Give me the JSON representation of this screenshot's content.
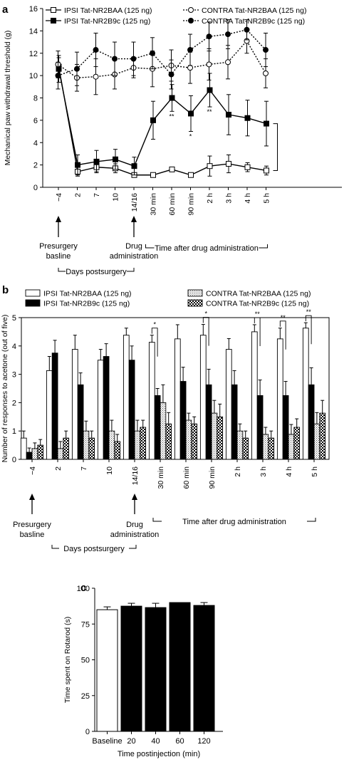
{
  "panels": {
    "a": {
      "letter": "a"
    },
    "b": {
      "letter": "b"
    },
    "c": {
      "letter": "c"
    }
  },
  "common": {
    "x_categories": [
      "−4",
      "2",
      "7",
      "10",
      "14/16",
      "30 min",
      "60 min",
      "90 min",
      "2 h",
      "3 h",
      "4 h",
      "5 h"
    ],
    "presurgery_label": [
      "Presurgery",
      "basline"
    ],
    "drug_label": [
      "Drug",
      "administration"
    ],
    "days_label": "Days postsurgery",
    "time_after_label": "Time after drug administration"
  },
  "chart_data": [
    {
      "panel": "a",
      "type": "line",
      "ylabel": "Mechanical paw withdrawal threshold (g)",
      "xlabel": "",
      "ylim": [
        0,
        16
      ],
      "yticks": [
        0,
        2,
        4,
        6,
        8,
        10,
        12,
        14,
        16
      ],
      "categories": [
        "−4",
        "2",
        "7",
        "10",
        "14/16",
        "30 min",
        "60 min",
        "90 min",
        "2 h",
        "3 h",
        "4 h",
        "5 h"
      ],
      "legend_position": "top",
      "series": [
        {
          "name": "IPSI Tat-NR2BAA (125 ng)",
          "marker": "open-square",
          "line": "solid",
          "values": [
            10.8,
            1.4,
            1.8,
            1.7,
            1.1,
            1.1,
            1.6,
            1.1,
            1.9,
            2.1,
            1.8,
            1.5
          ],
          "errors": [
            0.8,
            0.4,
            0.4,
            0.4,
            0.2,
            0.1,
            0.2,
            0.2,
            0.9,
            0.8,
            0.4,
            0.4
          ]
        },
        {
          "name": "IPSI Tat-NR2B9c (125 ng)",
          "marker": "filled-square",
          "line": "solid",
          "values": [
            10.6,
            2.0,
            2.3,
            2.5,
            1.9,
            6.0,
            8.0,
            6.6,
            8.7,
            6.5,
            6.2,
            5.7
          ],
          "errors": [
            1.2,
            0.9,
            1.0,
            0.9,
            0.8,
            1.7,
            1.2,
            1.6,
            1.5,
            1.8,
            1.6,
            2.0
          ]
        },
        {
          "name": "CONTRA Tat-NR2BAA (125 ng)",
          "marker": "open-circle",
          "line": "dotted",
          "values": [
            11.0,
            9.8,
            9.9,
            10.1,
            10.7,
            10.6,
            10.9,
            10.7,
            11.0,
            11.2,
            13.1,
            10.2
          ],
          "errors": [
            1.2,
            1.2,
            1.6,
            1.3,
            0.9,
            1.6,
            1.4,
            1.4,
            1.4,
            1.5,
            1.1,
            1.3
          ]
        },
        {
          "name": "CONTRA Tat-NR2B9c (125 ng)",
          "marker": "filled-circle",
          "line": "dotted",
          "values": [
            10.0,
            10.6,
            12.3,
            11.5,
            11.5,
            12.0,
            10.1,
            12.3,
            13.5,
            13.7,
            14.1,
            12.3
          ],
          "errors": [
            1.2,
            1.5,
            1.5,
            1.5,
            1.5,
            1.4,
            1.3,
            1.4,
            1.3,
            1.3,
            0.9,
            1.5
          ]
        }
      ],
      "significance": [
        {
          "index": 6,
          "label": "**"
        },
        {
          "index": 7,
          "label": "*"
        },
        {
          "index": 8,
          "label": "**"
        }
      ]
    },
    {
      "panel": "b",
      "type": "bar",
      "ylabel": "Number of responses to acetone (out of five)",
      "xlabel": "",
      "ylim": [
        0,
        5
      ],
      "yticks": [
        0,
        1,
        2,
        3,
        4,
        5
      ],
      "categories": [
        "−4",
        "2",
        "7",
        "10",
        "14/16",
        "30 min",
        "60 min",
        "90 min",
        "2 h",
        "3 h",
        "4 h",
        "5 h"
      ],
      "legend_position": "top",
      "series": [
        {
          "name": "IPSI Tat-NR2BAA (125 ng)",
          "fill": "white",
          "values": [
            0.75,
            3.13,
            3.88,
            3.5,
            4.38,
            4.13,
            4.25,
            4.38,
            3.88,
            4.5,
            4.25,
            4.63
          ],
          "errors": [
            0.25,
            0.5,
            0.5,
            0.38,
            0.25,
            0.25,
            0.5,
            0.38,
            0.38,
            0.25,
            0.38,
            0.19
          ]
        },
        {
          "name": "IPSI Tat-NR2B9c (125 ng)",
          "fill": "black",
          "values": [
            0.25,
            3.75,
            2.63,
            3.63,
            3.5,
            2.25,
            2.75,
            2.63,
            2.63,
            2.25,
            2.25,
            2.63
          ],
          "errors": [
            0.15,
            0.45,
            0.42,
            0.45,
            0.5,
            0.25,
            0.5,
            0.55,
            0.5,
            0.55,
            0.5,
            0.6
          ]
        },
        {
          "name": "CONTRA Tat-NR2BAA (125 ng)",
          "fill": "stipple",
          "values": [
            0.38,
            0.38,
            1.0,
            1.0,
            1.0,
            2.0,
            1.38,
            1.63,
            1.0,
            0.88,
            0.88,
            1.25
          ],
          "errors": [
            0.2,
            0.25,
            0.35,
            0.38,
            0.38,
            0.63,
            0.25,
            0.45,
            0.25,
            0.25,
            0.35,
            0.4
          ]
        },
        {
          "name": "CONTRA Tat-NR2B9c (125 ng)",
          "fill": "checker",
          "values": [
            0.5,
            0.75,
            0.75,
            0.63,
            1.13,
            1.25,
            1.25,
            1.5,
            0.75,
            0.75,
            1.13,
            1.63
          ],
          "errors": [
            0.2,
            0.25,
            0.25,
            0.25,
            0.25,
            0.4,
            0.25,
            0.45,
            0.25,
            0.25,
            0.3,
            0.45
          ]
        }
      ],
      "significance": [
        {
          "index": 5,
          "label": "*"
        },
        {
          "index": 7,
          "label": "*"
        },
        {
          "index": 9,
          "label": "**"
        },
        {
          "index": 10,
          "label": "**"
        },
        {
          "index": 11,
          "label": "**"
        }
      ]
    },
    {
      "panel": "c",
      "type": "bar",
      "ylabel": "Time spent on Rotarod (s)",
      "xlabel": "Time postinjection (min)",
      "ylim": [
        0,
        100
      ],
      "yticks": [
        0,
        25,
        50,
        75,
        100
      ],
      "categories": [
        "Baseline",
        "20",
        "40",
        "60",
        "120"
      ],
      "series": [
        {
          "name": "",
          "fills": [
            "white",
            "black",
            "black",
            "black",
            "black"
          ],
          "values": [
            85,
            87.5,
            86.5,
            90,
            88
          ],
          "errors": [
            2,
            2,
            3,
            0,
            2
          ]
        }
      ]
    }
  ]
}
